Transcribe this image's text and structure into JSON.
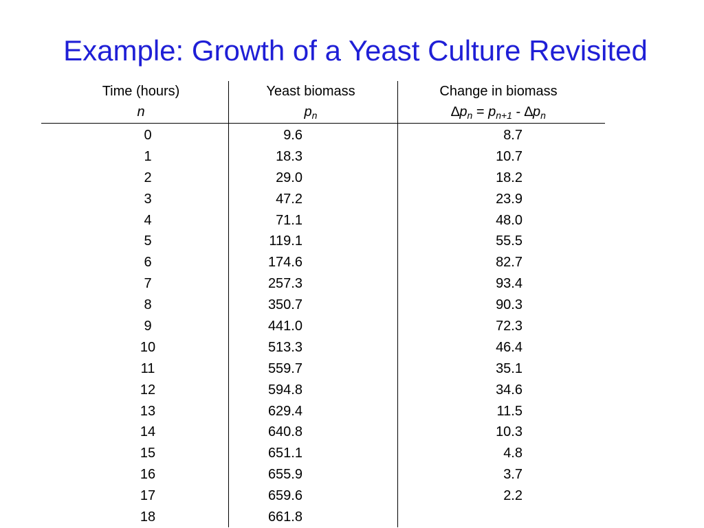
{
  "title": "Example: Growth of a Yeast Culture Revisited",
  "table": {
    "headers": [
      {
        "line1": "Time (hours)",
        "line2": "n"
      },
      {
        "line1": "Yeast biomass",
        "line2_var": "p",
        "line2_sub": "n"
      },
      {
        "line1": "Change in biomass",
        "formula": {
          "delta": "∆",
          "p": "p",
          "sub_n": "n",
          "eq": " = ",
          "sub_np1": "n+1",
          "minus": " - "
        }
      }
    ],
    "rows": [
      {
        "n": "0",
        "p": "9.6",
        "dp": "8.7"
      },
      {
        "n": "1",
        "p": "18.3",
        "dp": "10.7"
      },
      {
        "n": "2",
        "p": "29.0",
        "dp": "18.2"
      },
      {
        "n": "3",
        "p": "47.2",
        "dp": "23.9"
      },
      {
        "n": "4",
        "p": "71.1",
        "dp": "48.0"
      },
      {
        "n": "5",
        "p": "119.1",
        "dp": "55.5"
      },
      {
        "n": "6",
        "p": "174.6",
        "dp": "82.7"
      },
      {
        "n": "7",
        "p": "257.3",
        "dp": "93.4"
      },
      {
        "n": "8",
        "p": "350.7",
        "dp": "90.3"
      },
      {
        "n": "9",
        "p": "441.0",
        "dp": "72.3"
      },
      {
        "n": "10",
        "p": "513.3",
        "dp": "46.4"
      },
      {
        "n": "11",
        "p": "559.7",
        "dp": "35.1"
      },
      {
        "n": "12",
        "p": "594.8",
        "dp": "34.6"
      },
      {
        "n": "13",
        "p": "629.4",
        "dp": "11.5"
      },
      {
        "n": "14",
        "p": "640.8",
        "dp": "10.3"
      },
      {
        "n": "15",
        "p": "651.1",
        "dp": "4.8"
      },
      {
        "n": "16",
        "p": "655.9",
        "dp": "3.7"
      },
      {
        "n": "17",
        "p": "659.6",
        "dp": "2.2"
      },
      {
        "n": "18",
        "p": "661.8",
        "dp": ""
      }
    ]
  },
  "colors": {
    "title": "#1f1fd6",
    "text": "#000000"
  }
}
